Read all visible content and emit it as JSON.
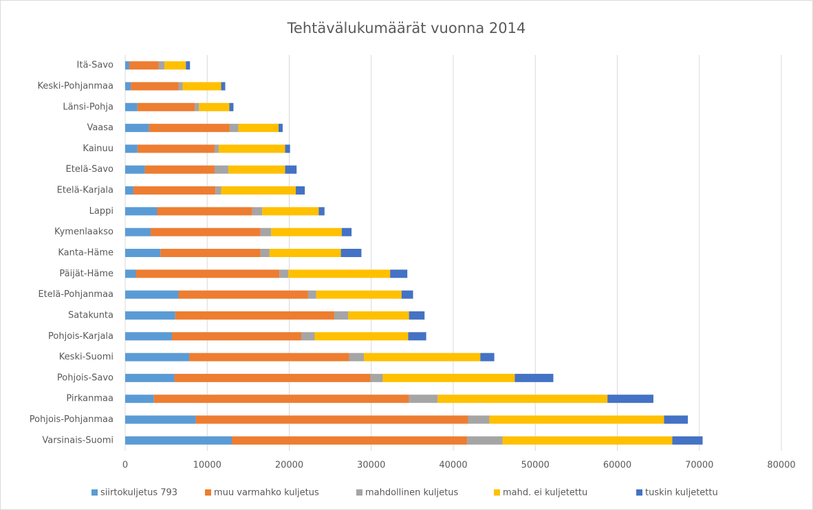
{
  "chart_data": {
    "type": "stacked-bar-horizontal",
    "title": "Tehtävälukumäärät vuonna 2014",
    "categories": [
      "Itä-Savo",
      "Keski-Pohjanmaa",
      "Länsi-Pohja",
      "Vaasa",
      "Kainuu",
      "Etelä-Savo",
      "Etelä-Karjala",
      "Lappi",
      "Kymenlaakso",
      "Kanta-Häme",
      "Päijät-Häme",
      "Etelä-Pohjanmaa",
      "Satakunta",
      "Pohjois-Karjala",
      "Keski-Suomi",
      "Pohjois-Savo",
      "Pirkanmaa",
      "Pohjois-Pohjanmaa",
      "Varsinais-Suomi"
    ],
    "series": [
      {
        "name": "siirtokuljetus 793",
        "color": "#5b9bd5",
        "values": [
          500,
          700,
          1500,
          2900,
          1500,
          2400,
          1000,
          3900,
          3100,
          4300,
          1300,
          6500,
          6100,
          5700,
          7800,
          6000,
          3500,
          8600,
          13000
        ]
      },
      {
        "name": "muu varmahko kuljetus",
        "color": "#ed7d31",
        "values": [
          3600,
          5800,
          7000,
          9800,
          9400,
          8500,
          10000,
          11600,
          13400,
          12200,
          17500,
          15800,
          19400,
          15800,
          19500,
          23900,
          31100,
          33200,
          28700
        ]
      },
      {
        "name": "mahdollinen kuljetus",
        "color": "#a5a5a5",
        "values": [
          700,
          500,
          500,
          1100,
          500,
          1700,
          700,
          1200,
          1300,
          1100,
          1100,
          1000,
          1700,
          1600,
          1800,
          1500,
          3500,
          2600,
          4300
        ]
      },
      {
        "name": "mahd. ei kuljetettu",
        "color": "#ffc000",
        "values": [
          2600,
          4700,
          3700,
          4900,
          8100,
          6900,
          9100,
          6900,
          8600,
          8700,
          12400,
          10400,
          7400,
          11400,
          14200,
          16100,
          20700,
          21300,
          20700
        ]
      },
      {
        "name": "tuskin kuljetettu",
        "color": "#4472c4",
        "values": [
          500,
          500,
          500,
          500,
          600,
          1400,
          1100,
          700,
          1200,
          2500,
          2100,
          1400,
          1900,
          2200,
          1700,
          4700,
          5600,
          2900,
          3700
        ]
      }
    ],
    "xlim": [
      0,
      80000
    ],
    "xticks": [
      0,
      10000,
      20000,
      30000,
      40000,
      50000,
      60000,
      70000,
      80000
    ],
    "grid": true,
    "legend": "bottom"
  }
}
